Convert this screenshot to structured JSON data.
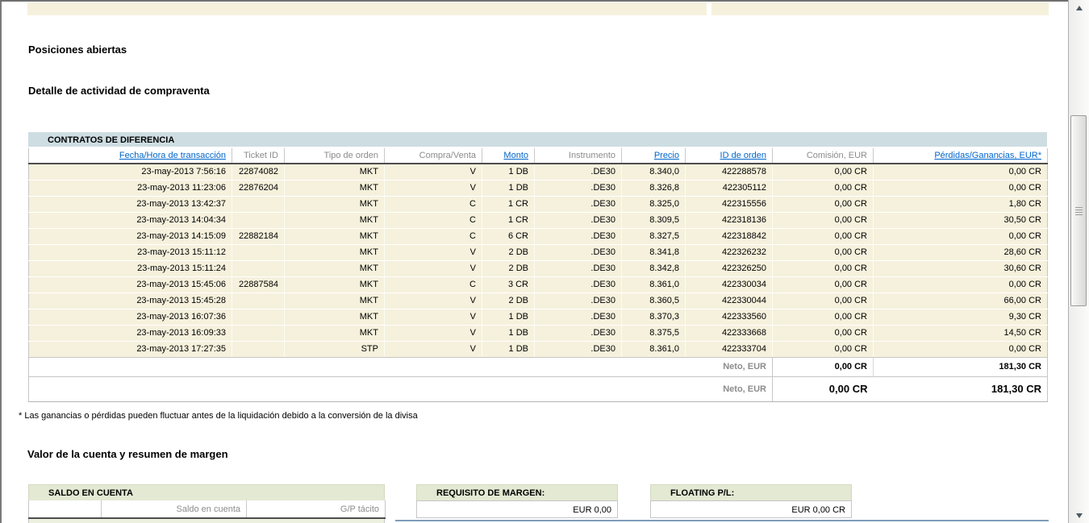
{
  "titles": {
    "open_positions": "Posiciones abiertas",
    "trade_activity": "Detalle de actividad de compraventa",
    "account_value": "Valor de la cuenta y resumen de margen"
  },
  "cfd_table": {
    "title": "CONTRATOS DE DIFERENCIA",
    "columns": [
      {
        "label": "Fecha/Hora de transacción",
        "link": true
      },
      {
        "label": "Ticket ID",
        "link": false
      },
      {
        "label": "Tipo de orden",
        "link": false
      },
      {
        "label": "Compra/Venta",
        "link": false
      },
      {
        "label": "Monto",
        "link": true
      },
      {
        "label": "Instrumento",
        "link": false
      },
      {
        "label": "Precio",
        "link": true
      },
      {
        "label": "ID de orden",
        "link": true
      },
      {
        "label": "Comisión, EUR",
        "link": false
      },
      {
        "label": "Pérdidas/Ganancias, EUR*",
        "link": true
      }
    ],
    "rows": [
      [
        "23-may-2013 7:56:16",
        "22874082",
        "MKT",
        "V",
        "1 DB",
        ".DE30",
        "8.340,0",
        "422288578",
        "0,00 CR",
        "0,00 CR"
      ],
      [
        "23-may-2013 11:23:06",
        "22876204",
        "MKT",
        "V",
        "1 DB",
        ".DE30",
        "8.326,8",
        "422305112",
        "0,00 CR",
        "0,00 CR"
      ],
      [
        "23-may-2013 13:42:37",
        "",
        "MKT",
        "C",
        "1 CR",
        ".DE30",
        "8.325,0",
        "422315556",
        "0,00 CR",
        "1,80 CR"
      ],
      [
        "23-may-2013 14:04:34",
        "",
        "MKT",
        "C",
        "1 CR",
        ".DE30",
        "8.309,5",
        "422318136",
        "0,00 CR",
        "30,50 CR"
      ],
      [
        "23-may-2013 14:15:09",
        "22882184",
        "MKT",
        "C",
        "6 CR",
        ".DE30",
        "8.327,5",
        "422318842",
        "0,00 CR",
        "0,00 CR"
      ],
      [
        "23-may-2013 15:11:12",
        "",
        "MKT",
        "V",
        "2 DB",
        ".DE30",
        "8.341,8",
        "422326232",
        "0,00 CR",
        "28,60 CR"
      ],
      [
        "23-may-2013 15:11:24",
        "",
        "MKT",
        "V",
        "2 DB",
        ".DE30",
        "8.342,8",
        "422326250",
        "0,00 CR",
        "30,60 CR"
      ],
      [
        "23-may-2013 15:45:06",
        "22887584",
        "MKT",
        "C",
        "3 CR",
        ".DE30",
        "8.361,0",
        "422330034",
        "0,00 CR",
        "0,00 CR"
      ],
      [
        "23-may-2013 15:45:28",
        "",
        "MKT",
        "V",
        "2 DB",
        ".DE30",
        "8.360,5",
        "422330044",
        "0,00 CR",
        "66,00 CR"
      ],
      [
        "23-may-2013 16:07:36",
        "",
        "MKT",
        "V",
        "1 DB",
        ".DE30",
        "8.370,3",
        "422333560",
        "0,00 CR",
        "9,30 CR"
      ],
      [
        "23-may-2013 16:09:33",
        "",
        "MKT",
        "V",
        "1 DB",
        ".DE30",
        "8.375,5",
        "422333668",
        "0,00 CR",
        "14,50 CR"
      ],
      [
        "23-may-2013 17:27:35",
        "",
        "STP",
        "V",
        "1 DB",
        ".DE30",
        "8.361,0",
        "422333704",
        "0,00 CR",
        "0,00 CR"
      ]
    ],
    "totals": [
      {
        "label": "Neto, EUR",
        "commission": "0,00 CR",
        "pl": "181,30 CR"
      },
      {
        "label": "Neto, EUR",
        "commission": "0,00 CR",
        "pl": "181,30 CR"
      }
    ]
  },
  "footnote": "* Las ganancias o pérdidas pueden fluctuar antes de la liquidación debido a la conversión de la divisa",
  "summary_boxes": {
    "saldo": {
      "title": "SALDO EN CUENTA",
      "col1": "Saldo en cuenta",
      "col2": "G/P tácito"
    },
    "margen": {
      "title": "REQUISITO DE MARGEN:",
      "value": "EUR 0,00"
    },
    "floating": {
      "title": "FLOATING P/L:",
      "value": "EUR 0,00 CR"
    }
  },
  "colors": {
    "table_title_bar": "#cedde2",
    "row_beige": "#f5f1dc",
    "green_header": "#e3e9d2",
    "link_blue": "#0066cc",
    "header_text_gray": "#8c8c8c",
    "dark_header_rule": "#4d4d4d",
    "bottom_blue_line": "#7f9db9"
  }
}
